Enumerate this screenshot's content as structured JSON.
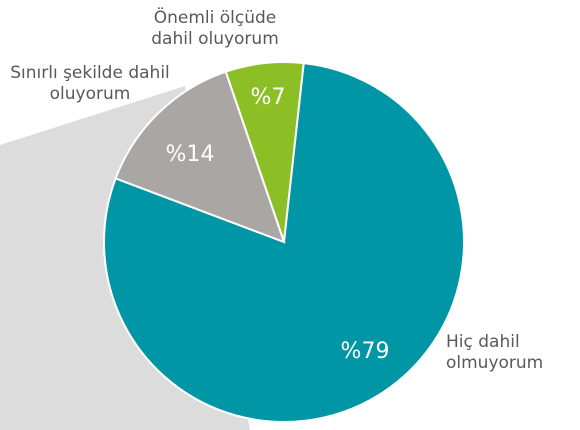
{
  "chart_data": {
    "type": "pie",
    "categories": [
      "Önemli ölçüde dahil oluyorum",
      "Hiç dahil olmuyorum",
      "Sınırlı şekilde dahil oluyorum"
    ],
    "values": [
      7,
      79,
      14
    ],
    "value_labels": [
      "%7",
      "%79",
      "%14"
    ],
    "colors": [
      "#8cbf26",
      "#0096a6",
      "#aaa6a4"
    ]
  }
}
